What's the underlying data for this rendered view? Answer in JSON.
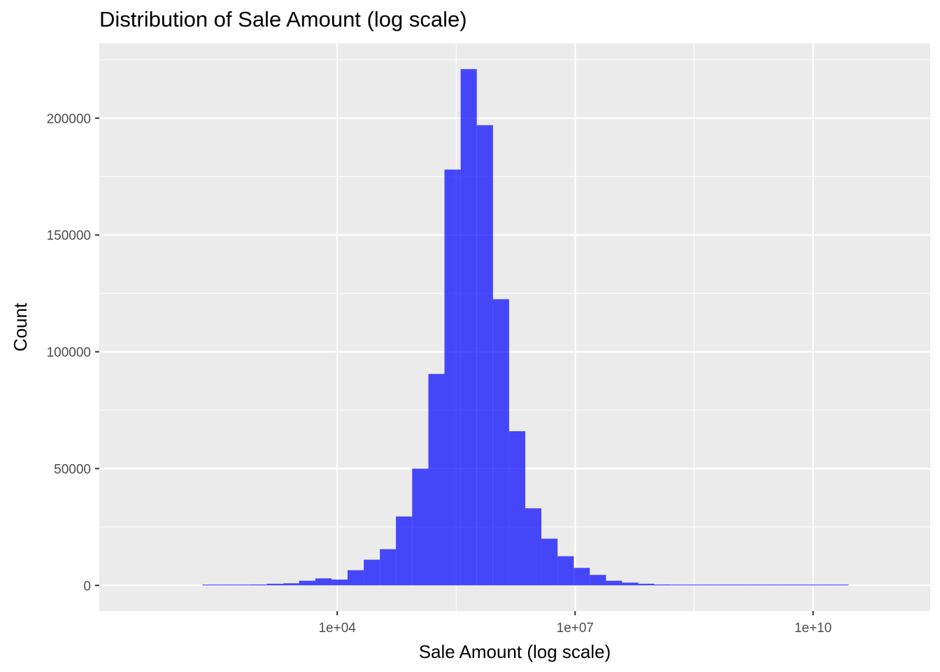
{
  "chart_data": {
    "type": "bar",
    "title": "Distribution of Sale Amount (log scale)",
    "xlabel": "Sale Amount (log scale)",
    "ylabel": "Count",
    "x_scale": "log10",
    "xlim": [
      10,
      300000000000
    ],
    "ylim": [
      -11000,
      232000
    ],
    "x_ticks": [
      10000,
      10000000,
      10000000000
    ],
    "x_tick_labels": [
      "1e+04",
      "1e+07",
      "1e+10"
    ],
    "y_ticks": [
      0,
      50000,
      100000,
      150000,
      200000
    ],
    "y_tick_labels": [
      "0",
      "50000",
      "100000",
      "150000",
      "200000"
    ],
    "grid": true,
    "bar_color": "#0000ff",
    "bar_opacity": 0.7,
    "panel_background": "#ebebeb",
    "bins": [
      {
        "x0": 200,
        "x1": 320,
        "count": 100
      },
      {
        "x0": 320,
        "x1": 510,
        "count": 150
      },
      {
        "x0": 510,
        "x1": 820,
        "count": 250
      },
      {
        "x0": 820,
        "x1": 1300,
        "count": 400
      },
      {
        "x0": 1300,
        "x1": 2100,
        "count": 700
      },
      {
        "x0": 2100,
        "x1": 3300,
        "count": 900
      },
      {
        "x0": 3300,
        "x1": 5300,
        "count": 2000
      },
      {
        "x0": 5300,
        "x1": 8500,
        "count": 3000
      },
      {
        "x0": 8500,
        "x1": 13500,
        "count": 2500
      },
      {
        "x0": 13500,
        "x1": 21600,
        "count": 6500
      },
      {
        "x0": 21600,
        "x1": 34500,
        "count": 11000
      },
      {
        "x0": 34500,
        "x1": 55000,
        "count": 15500
      },
      {
        "x0": 55000,
        "x1": 88000,
        "count": 29500
      },
      {
        "x0": 88000,
        "x1": 141000,
        "count": 50000
      },
      {
        "x0": 141000,
        "x1": 225000,
        "count": 90500
      },
      {
        "x0": 225000,
        "x1": 360000,
        "count": 178000
      },
      {
        "x0": 360000,
        "x1": 575000,
        "count": 221000
      },
      {
        "x0": 575000,
        "x1": 920000,
        "count": 197000
      },
      {
        "x0": 920000,
        "x1": 1470000,
        "count": 122500
      },
      {
        "x0": 1470000,
        "x1": 2350000,
        "count": 66000
      },
      {
        "x0": 2350000,
        "x1": 3750000,
        "count": 33000
      },
      {
        "x0": 3750000,
        "x1": 6000000,
        "count": 20000
      },
      {
        "x0": 6000000,
        "x1": 9600000,
        "count": 12500
      },
      {
        "x0": 9600000,
        "x1": 15300000,
        "count": 7500
      },
      {
        "x0": 15300000,
        "x1": 24500000,
        "count": 4500
      },
      {
        "x0": 24500000,
        "x1": 39000000,
        "count": 2000
      },
      {
        "x0": 39000000,
        "x1": 62500000,
        "count": 1200
      },
      {
        "x0": 62500000,
        "x1": 100000000,
        "count": 700
      },
      {
        "x0": 100000000,
        "x1": 160000000,
        "count": 400
      },
      {
        "x0": 160000000,
        "x1": 255000000,
        "count": 250
      },
      {
        "x0": 255000000,
        "x1": 410000000,
        "count": 150
      },
      {
        "x0": 410000000,
        "x1": 650000000,
        "count": 100
      },
      {
        "x0": 650000000,
        "x1": 1040000000,
        "count": 80
      },
      {
        "x0": 1040000000,
        "x1": 1660000000,
        "count": 60
      },
      {
        "x0": 1660000000,
        "x1": 2650000000,
        "count": 40
      },
      {
        "x0": 2650000000,
        "x1": 4250000000,
        "count": 30
      },
      {
        "x0": 4250000000,
        "x1": 6800000000,
        "count": 20
      },
      {
        "x0": 6800000000,
        "x1": 11000000000,
        "count": 15
      },
      {
        "x0": 11000000000,
        "x1": 17500000000,
        "count": 10
      },
      {
        "x0": 17500000000,
        "x1": 28000000000,
        "count": 8
      }
    ]
  }
}
